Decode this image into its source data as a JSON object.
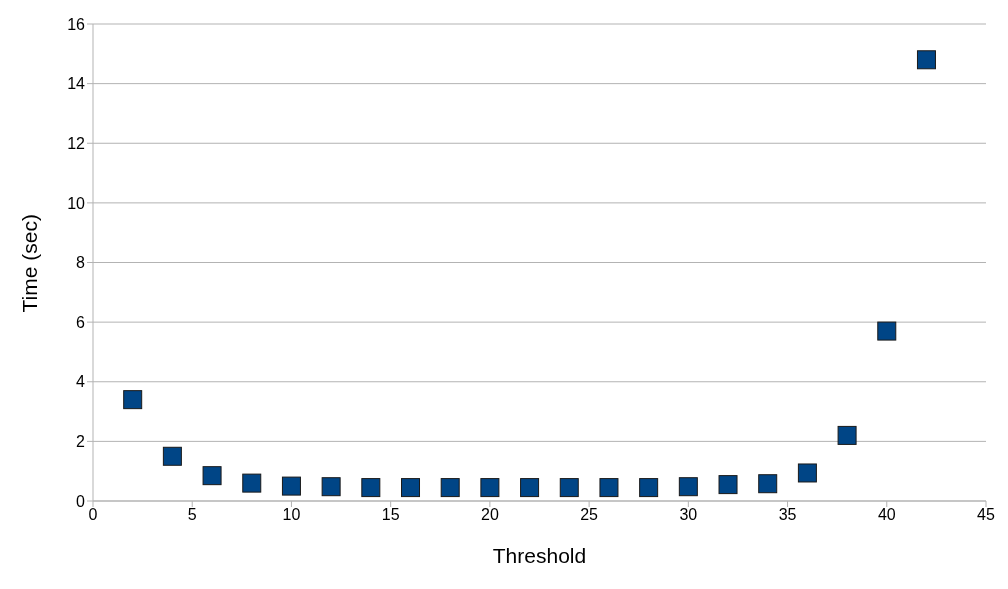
{
  "chart_data": {
    "type": "scatter",
    "xlabel": "Threshold",
    "ylabel": "Time (sec)",
    "x": [
      2,
      4,
      6,
      8,
      10,
      12,
      14,
      16,
      18,
      20,
      22,
      24,
      26,
      28,
      30,
      32,
      34,
      36,
      38,
      40,
      42
    ],
    "series": [
      {
        "color": "#004586",
        "values": [
          3.4,
          1.5,
          0.85,
          0.6,
          0.5,
          0.48,
          0.45,
          0.45,
          0.45,
          0.45,
          0.45,
          0.45,
          0.45,
          0.45,
          0.48,
          0.55,
          0.58,
          0.94,
          2.2,
          5.7,
          14.8
        ]
      }
    ],
    "xlim": [
      0,
      45
    ],
    "xticks": [
      0,
      5,
      10,
      15,
      20,
      25,
      30,
      35,
      40,
      45
    ],
    "ylim": [
      0,
      16
    ],
    "yticks": [
      0,
      2,
      4,
      6,
      8,
      10,
      12,
      14,
      16
    ],
    "grid": "y",
    "marker": "square",
    "legend": false
  }
}
